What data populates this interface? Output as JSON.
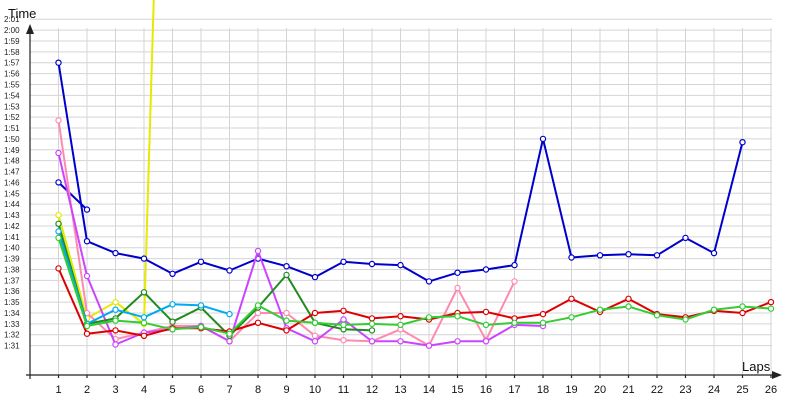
{
  "chart_data": {
    "type": "line",
    "xlabel": "Laps",
    "ylabel": "Time",
    "x": [
      1,
      2,
      3,
      4,
      5,
      6,
      7,
      8,
      9,
      10,
      11,
      12,
      13,
      14,
      15,
      16,
      17,
      18,
      19,
      20,
      21,
      22,
      23,
      24,
      25,
      26
    ],
    "xlim": [
      1,
      26
    ],
    "ylim_seconds": [
      90,
      121
    ],
    "y_ticks": [
      "1:31",
      "1:32",
      "1:33",
      "1:34",
      "1:35",
      "1:36",
      "1:37",
      "1:38",
      "1:39",
      "1:40",
      "1:41",
      "1:42",
      "1:43",
      "1:44",
      "1:45",
      "1:46",
      "1:47",
      "1:48",
      "1:49",
      "1:50",
      "1:51",
      "1:52",
      "1:53",
      "1:54",
      "1:55",
      "1:56",
      "1:57",
      "1:58",
      "1:59",
      "2:00",
      "2:01"
    ],
    "grid": true,
    "series": [
      {
        "color": "#e8e800",
        "x": [
          1,
          2,
          3,
          4,
          5
        ],
        "values": [
          103,
          93.5,
          95,
          93,
          180
        ],
        "markers": [
          true,
          true,
          true,
          true,
          false
        ]
      },
      {
        "color": "#0000cc",
        "x": [
          1,
          2
        ],
        "values": [
          106,
          103.5
        ]
      },
      {
        "color": "#0000cc",
        "x": [
          1,
          2,
          3,
          4,
          5,
          6,
          7,
          8,
          9,
          10,
          11,
          12,
          13,
          14,
          15,
          16,
          17,
          18,
          19,
          20,
          21,
          22,
          23,
          24,
          25
        ],
        "values": [
          117,
          100.6,
          99.5,
          99,
          97.6,
          98.7,
          97.9,
          99,
          98.3,
          97.3,
          98.7,
          98.5,
          98.4,
          96.9,
          97.7,
          98,
          98.4,
          110,
          99.1,
          99.3,
          99.4,
          99.3,
          100.9,
          99.5,
          109.7
        ]
      },
      {
        "color": "#ff8ab0",
        "x": [
          1,
          2,
          3,
          4,
          5,
          6,
          7,
          8,
          9,
          10,
          11,
          12,
          13,
          14,
          15,
          16,
          17
        ],
        "values": [
          111.7,
          94,
          91.6,
          92.2,
          92.8,
          92.8,
          91.4,
          94,
          94,
          91.9,
          91.5,
          91.4,
          92.5,
          91,
          96.3,
          91.5,
          96.9
        ]
      },
      {
        "color": "#cc44ff",
        "x": [
          1,
          2,
          3,
          4,
          5,
          6,
          7,
          8,
          9,
          10,
          11,
          12,
          13,
          14,
          15,
          16,
          17,
          18
        ],
        "values": [
          108.7,
          97.4,
          91.1,
          92.2,
          92.5,
          92.8,
          91.4,
          99.7,
          92.6,
          91.4,
          93.4,
          91.4,
          91.4,
          91,
          91.4,
          91.4,
          92.9,
          92.8
        ]
      },
      {
        "color": "#1e8c1e",
        "x": [
          1,
          2,
          3,
          4,
          5,
          6,
          7,
          8,
          9,
          10,
          11,
          12
        ],
        "values": [
          102.2,
          93,
          93.5,
          95.9,
          93.2,
          94.5,
          91.9,
          94.5,
          97.5,
          93.1,
          92.5,
          92.4
        ]
      },
      {
        "color": "#00aaee",
        "x": [
          1,
          2,
          3,
          4,
          5,
          6,
          7
        ],
        "values": [
          101.5,
          93,
          94.3,
          93.6,
          94.8,
          94.7,
          93.9
        ]
      },
      {
        "color": "#dd0000",
        "x": [
          1,
          2,
          3,
          4,
          5,
          6,
          7,
          8,
          9,
          10,
          11,
          12,
          13,
          14,
          15,
          16,
          17,
          18,
          19,
          20,
          21,
          22,
          23,
          24,
          25,
          26
        ],
        "values": [
          98.1,
          92.1,
          92.4,
          91.9,
          92.6,
          92.6,
          92.3,
          93.1,
          92.4,
          94,
          94.2,
          93.5,
          93.7,
          93.4,
          94,
          94.1,
          93.5,
          93.9,
          95.3,
          94.1,
          95.3,
          93.9,
          93.6,
          94.2,
          94,
          95
        ]
      },
      {
        "color": "#33cc33",
        "x": [
          1,
          2,
          3,
          4,
          5,
          6,
          7,
          8,
          9,
          10,
          11,
          12,
          13,
          14,
          15,
          16,
          17,
          18,
          19,
          20,
          21,
          22,
          23,
          24,
          25,
          26
        ],
        "values": [
          100.9,
          92.8,
          93.3,
          93.1,
          92.5,
          92.7,
          92.1,
          94.7,
          93.3,
          93.1,
          92.9,
          93,
          92.9,
          93.6,
          93.7,
          92.9,
          93.1,
          93.1,
          93.6,
          94.3,
          94.6,
          93.8,
          93.4,
          94.3,
          94.6,
          94.4
        ]
      }
    ]
  }
}
